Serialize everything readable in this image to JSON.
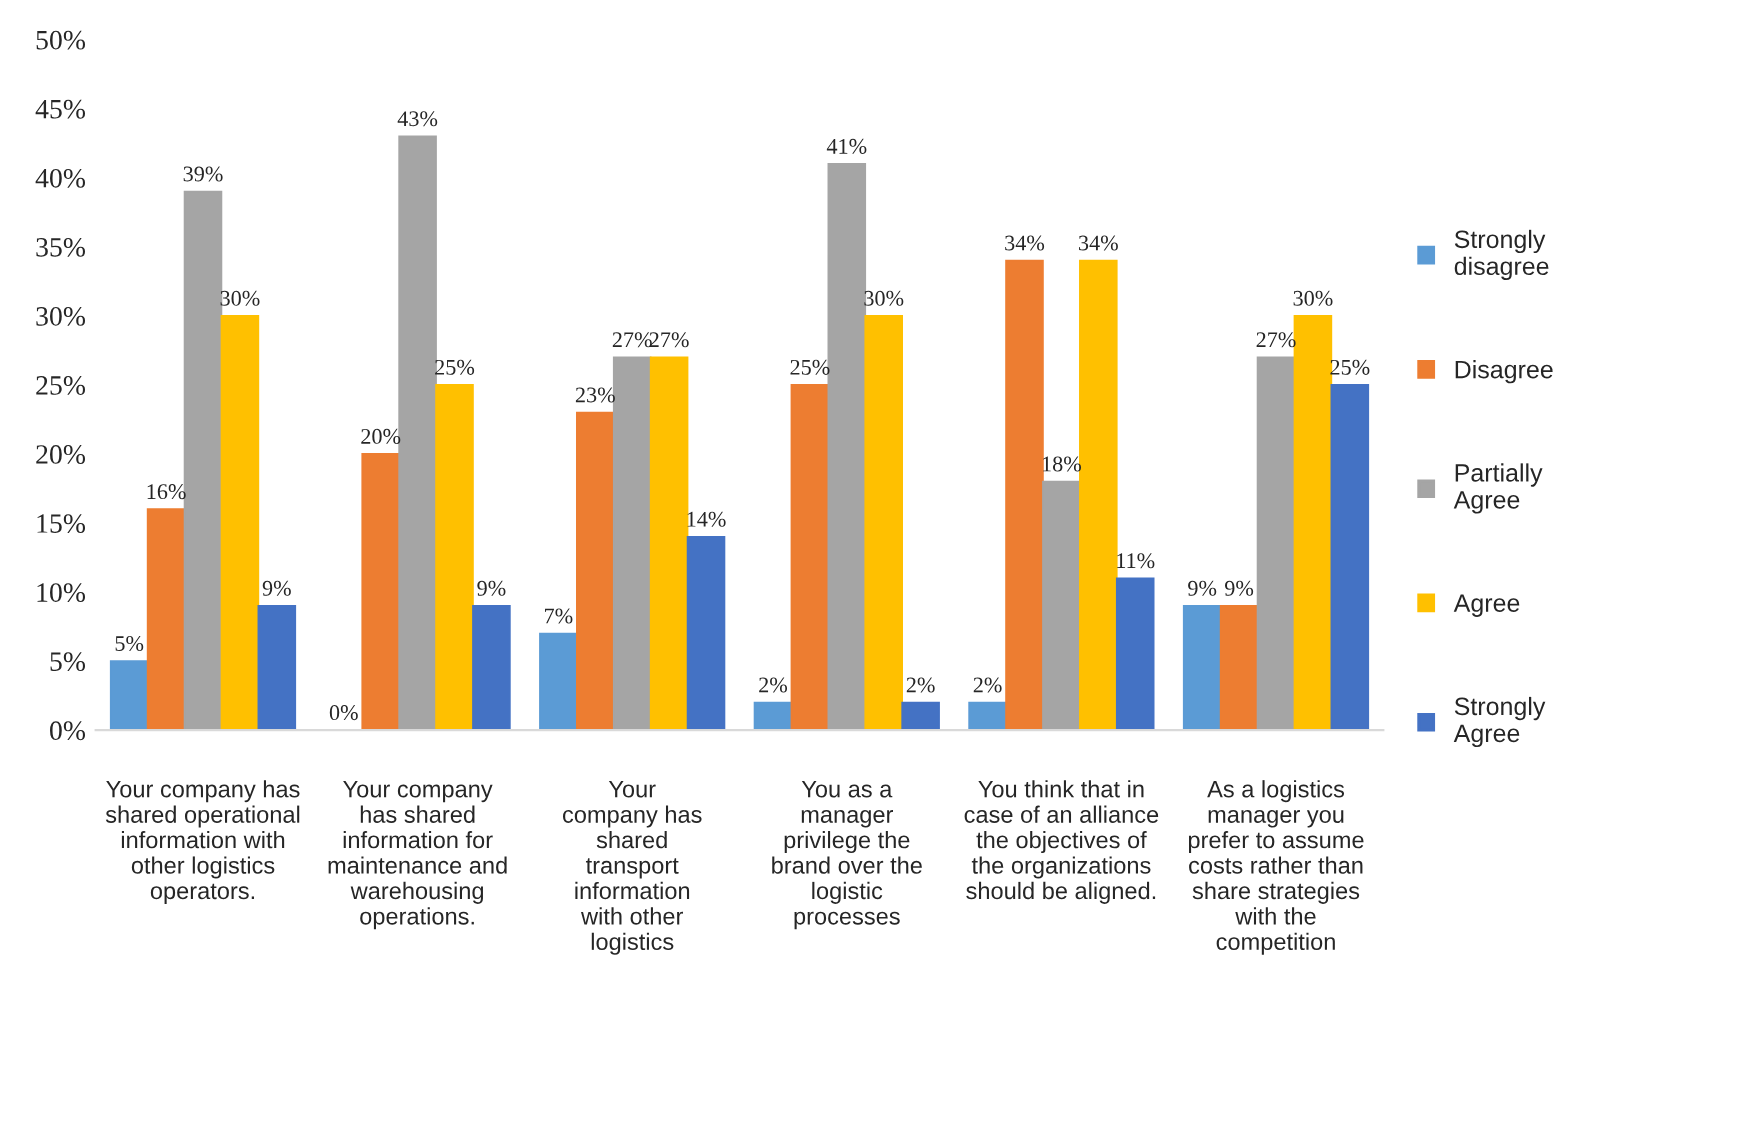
{
  "chart_data": {
    "type": "bar",
    "categories": [
      "Your company has\nshared operational\ninformation with\nother logistics\noperators.",
      "Your company\nhas shared\ninformation for\nmaintenance and\nwarehousing\noperations.",
      "Your\ncompany has\nshared\ntransport\ninformation\nwith other\nlogistics",
      "You as a\nmanager\nprivilege the\nbrand over the\nlogistic\nprocesses",
      "You think that in\ncase of an alliance\nthe objectives of\nthe organizations\nshould be aligned.",
      "As a logistics\nmanager you\nprefer to assume\ncosts rather than\nshare strategies\nwith the\ncompetition"
    ],
    "series": [
      {
        "name": "Strongly\ndisagree",
        "color": "#5b9bd5",
        "values": [
          5,
          0,
          7,
          2,
          2,
          9
        ]
      },
      {
        "name": "Disagree",
        "color": "#ed7d31",
        "values": [
          16,
          20,
          23,
          25,
          34,
          9
        ]
      },
      {
        "name": "Partially\nAgree",
        "color": "#a5a5a5",
        "values": [
          39,
          43,
          27,
          41,
          18,
          27
        ]
      },
      {
        "name": "Agree",
        "color": "#ffc000",
        "values": [
          30,
          25,
          27,
          30,
          34,
          30
        ]
      },
      {
        "name": "Strongly\nAgree",
        "color": "#4472c4",
        "values": [
          9,
          9,
          14,
          2,
          11,
          25
        ]
      }
    ],
    "ylim": [
      0,
      50
    ],
    "yticks": [
      {
        "value": 0,
        "label": "0%"
      },
      {
        "value": 5,
        "label": "5%"
      },
      {
        "value": 10,
        "label": "10%"
      },
      {
        "value": 15,
        "label": "15%"
      },
      {
        "value": 20,
        "label": "20%"
      },
      {
        "value": 25,
        "label": "25%"
      },
      {
        "value": 30,
        "label": "30%"
      },
      {
        "value": 35,
        "label": "35%"
      },
      {
        "value": 40,
        "label": "40%"
      },
      {
        "value": 45,
        "label": "45%"
      },
      {
        "value": 50,
        "label": "50%"
      }
    ],
    "value_labels": [
      [
        "5%",
        "0%",
        "7%",
        "2%",
        "2%",
        "9%"
      ],
      [
        "16%",
        "20%",
        "23%",
        "25%",
        "34%",
        "9%"
      ],
      [
        "39%",
        "43%",
        "27%",
        "41%",
        "18%",
        "27%"
      ],
      [
        "30%",
        "25%",
        "27%",
        "30%",
        "34%",
        "30%"
      ],
      [
        "9%",
        "9%",
        "14%",
        "2%",
        "11%",
        "25%"
      ]
    ],
    "grid": false,
    "legend": "right"
  }
}
